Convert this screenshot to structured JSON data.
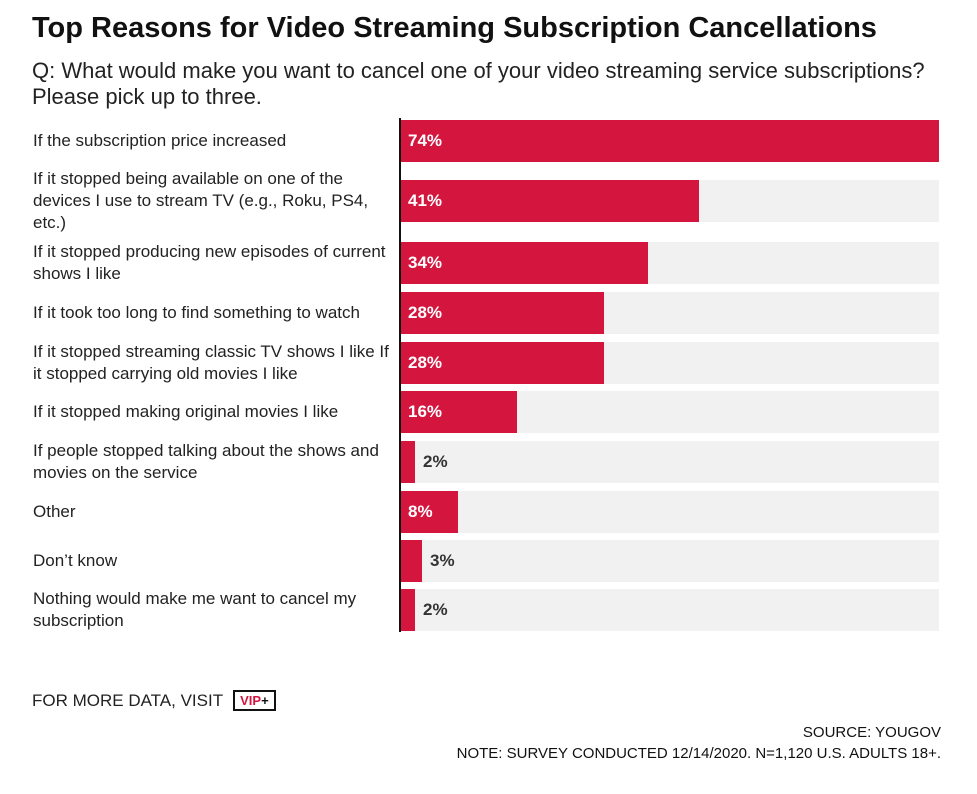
{
  "title": "Top Reasons for Video Streaming Subscription Cancellations",
  "subtitle": "Q: What would make you want to cancel one of your video streaming service subscriptions? Please pick up to three.",
  "footer": {
    "more_data": "FOR MORE DATA, VISIT",
    "badge_vip": "VIP",
    "badge_plus": "+",
    "source": "SOURCE: YOUGOV",
    "note": "NOTE: SURVEY CONDUCTED 12/14/2020. N=1,120 U.S. ADULTS 18+."
  },
  "colors": {
    "bar": "#d4163f",
    "track": "#f1f1f1"
  },
  "chart_data": {
    "type": "bar",
    "orientation": "horizontal",
    "title": "Top Reasons for Video Streaming Subscription Cancellations",
    "xlim": [
      0,
      74
    ],
    "categories": [
      "If the subscription price increased",
      "If it stopped being available on one of the devices I use to stream TV (e.g., Roku, PS4, etc.)",
      "If it stopped producing new episodes of current shows I like",
      "If it took too long to find something to watch",
      "If it stopped streaming classic TV shows I like If it stopped carrying old movies I like",
      "If it stopped making original movies I like",
      "If people stopped talking about the shows and movies on the service",
      "Other",
      "Don’t know",
      "Nothing would make me want to cancel my subscription"
    ],
    "values": [
      74,
      41,
      34,
      28,
      28,
      16,
      2,
      8,
      3,
      2
    ],
    "value_labels": [
      "74%",
      "41%",
      "34%",
      "28%",
      "28%",
      "16%",
      "2%",
      "8%",
      "3%",
      "2%"
    ]
  }
}
